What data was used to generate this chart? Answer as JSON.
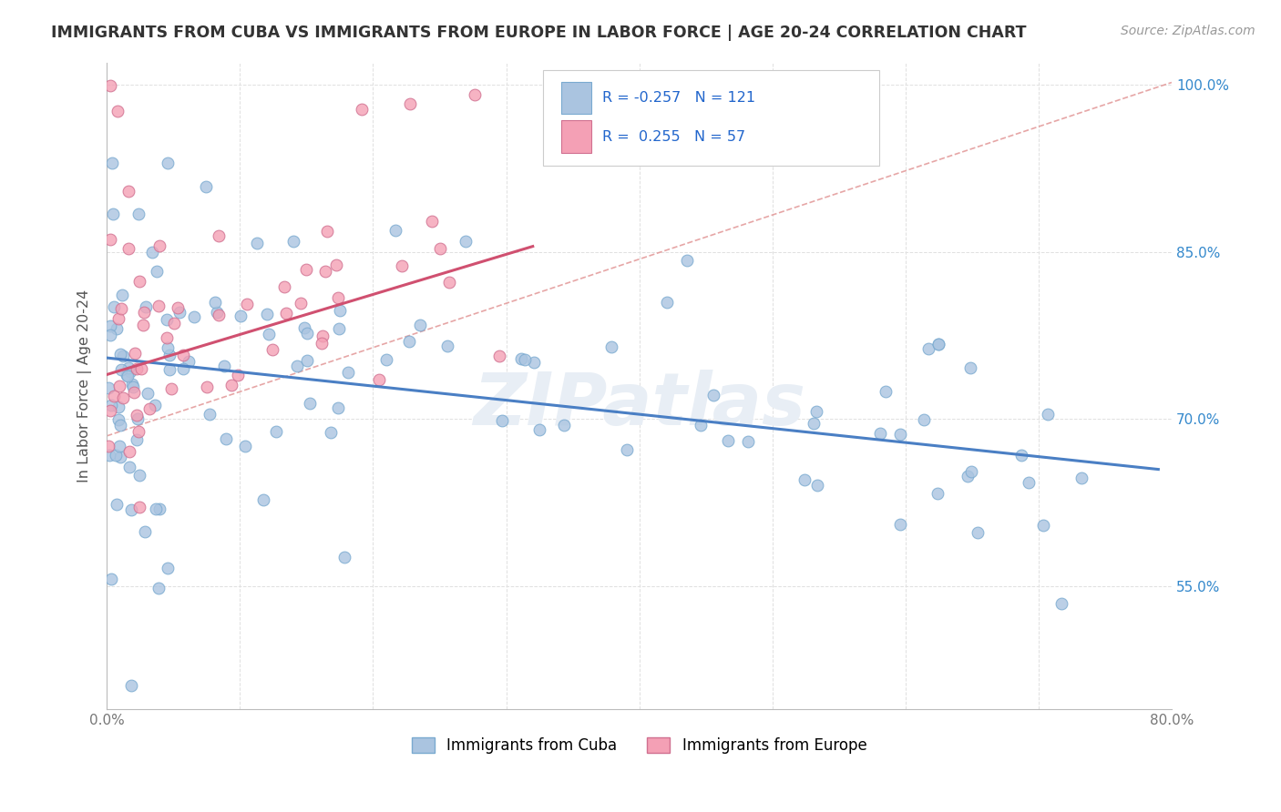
{
  "title": "IMMIGRANTS FROM CUBA VS IMMIGRANTS FROM EUROPE IN LABOR FORCE | AGE 20-24 CORRELATION CHART",
  "source": "Source: ZipAtlas.com",
  "ylabel": "In Labor Force | Age 20-24",
  "xlim": [
    0.0,
    0.8
  ],
  "ylim": [
    0.44,
    1.02
  ],
  "cuba_color": "#aac4e0",
  "cuba_edge_color": "#7aaad0",
  "europe_color": "#f4a0b5",
  "europe_edge_color": "#d07090",
  "cuba_R": -0.257,
  "cuba_N": 121,
  "europe_R": 0.255,
  "europe_N": 57,
  "legend_label_cuba": "Immigrants from Cuba",
  "legend_label_europe": "Immigrants from Europe",
  "background_color": "#ffffff",
  "grid_color": "#e0e0e0",
  "trend_color_blue": "#4a7fc4",
  "trend_color_pink": "#d05070",
  "diagonal_color": "#e09090",
  "watermark_color": "#e8eef5",
  "right_tick_color": "#3388cc",
  "title_color": "#333333",
  "source_color": "#999999"
}
